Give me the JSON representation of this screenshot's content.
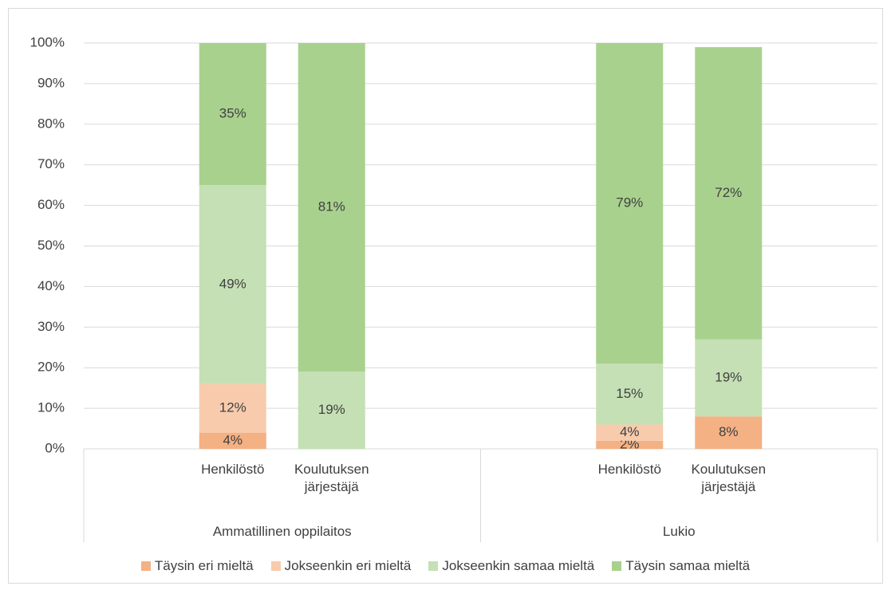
{
  "chart_data": {
    "type": "stacked_bar",
    "groups": [
      "Ammatillinen oppilaitos",
      "Lukio"
    ],
    "categories": [
      "Henkilöstö",
      "Koulutuksen järjestäjä",
      "Henkilöstö",
      "Koulutuksen järjestäjä"
    ],
    "category_group": [
      0,
      0,
      1,
      1
    ],
    "series": [
      {
        "name": "Täysin eri mieltä",
        "color": "#f4b183",
        "values": [
          4,
          null,
          2,
          8
        ],
        "value_labels": [
          "4%",
          null,
          "2%",
          "8%"
        ]
      },
      {
        "name": "Jokseenkin eri mieltä",
        "color": "#f8cbad",
        "values": [
          12,
          null,
          4,
          null
        ],
        "value_labels": [
          "12%",
          null,
          "4%",
          null
        ]
      },
      {
        "name": "Jokseenkin samaa mieltä",
        "color": "#c5e0b4",
        "values": [
          49,
          19,
          15,
          19
        ],
        "value_labels": [
          "49%",
          "19%",
          "15%",
          "19%"
        ]
      },
      {
        "name": "Täysin samaa mieltä",
        "color": "#a9d18e",
        "values": [
          35,
          81,
          79,
          72
        ],
        "value_labels": [
          "35%",
          "81%",
          "79%",
          "72%"
        ]
      }
    ],
    "ylim": [
      0,
      100
    ],
    "yticks": [
      {
        "value": 0,
        "label": "0%"
      },
      {
        "value": 10,
        "label": "10%"
      },
      {
        "value": 20,
        "label": "20%"
      },
      {
        "value": 30,
        "label": "30%"
      },
      {
        "value": 40,
        "label": "40%"
      },
      {
        "value": 50,
        "label": "50%"
      },
      {
        "value": 60,
        "label": "60%"
      },
      {
        "value": 70,
        "label": "70%"
      },
      {
        "value": 80,
        "label": "80%"
      },
      {
        "value": 90,
        "label": "90%"
      },
      {
        "value": 100,
        "label": "100%"
      }
    ],
    "grid": true,
    "legend": "bottom"
  }
}
